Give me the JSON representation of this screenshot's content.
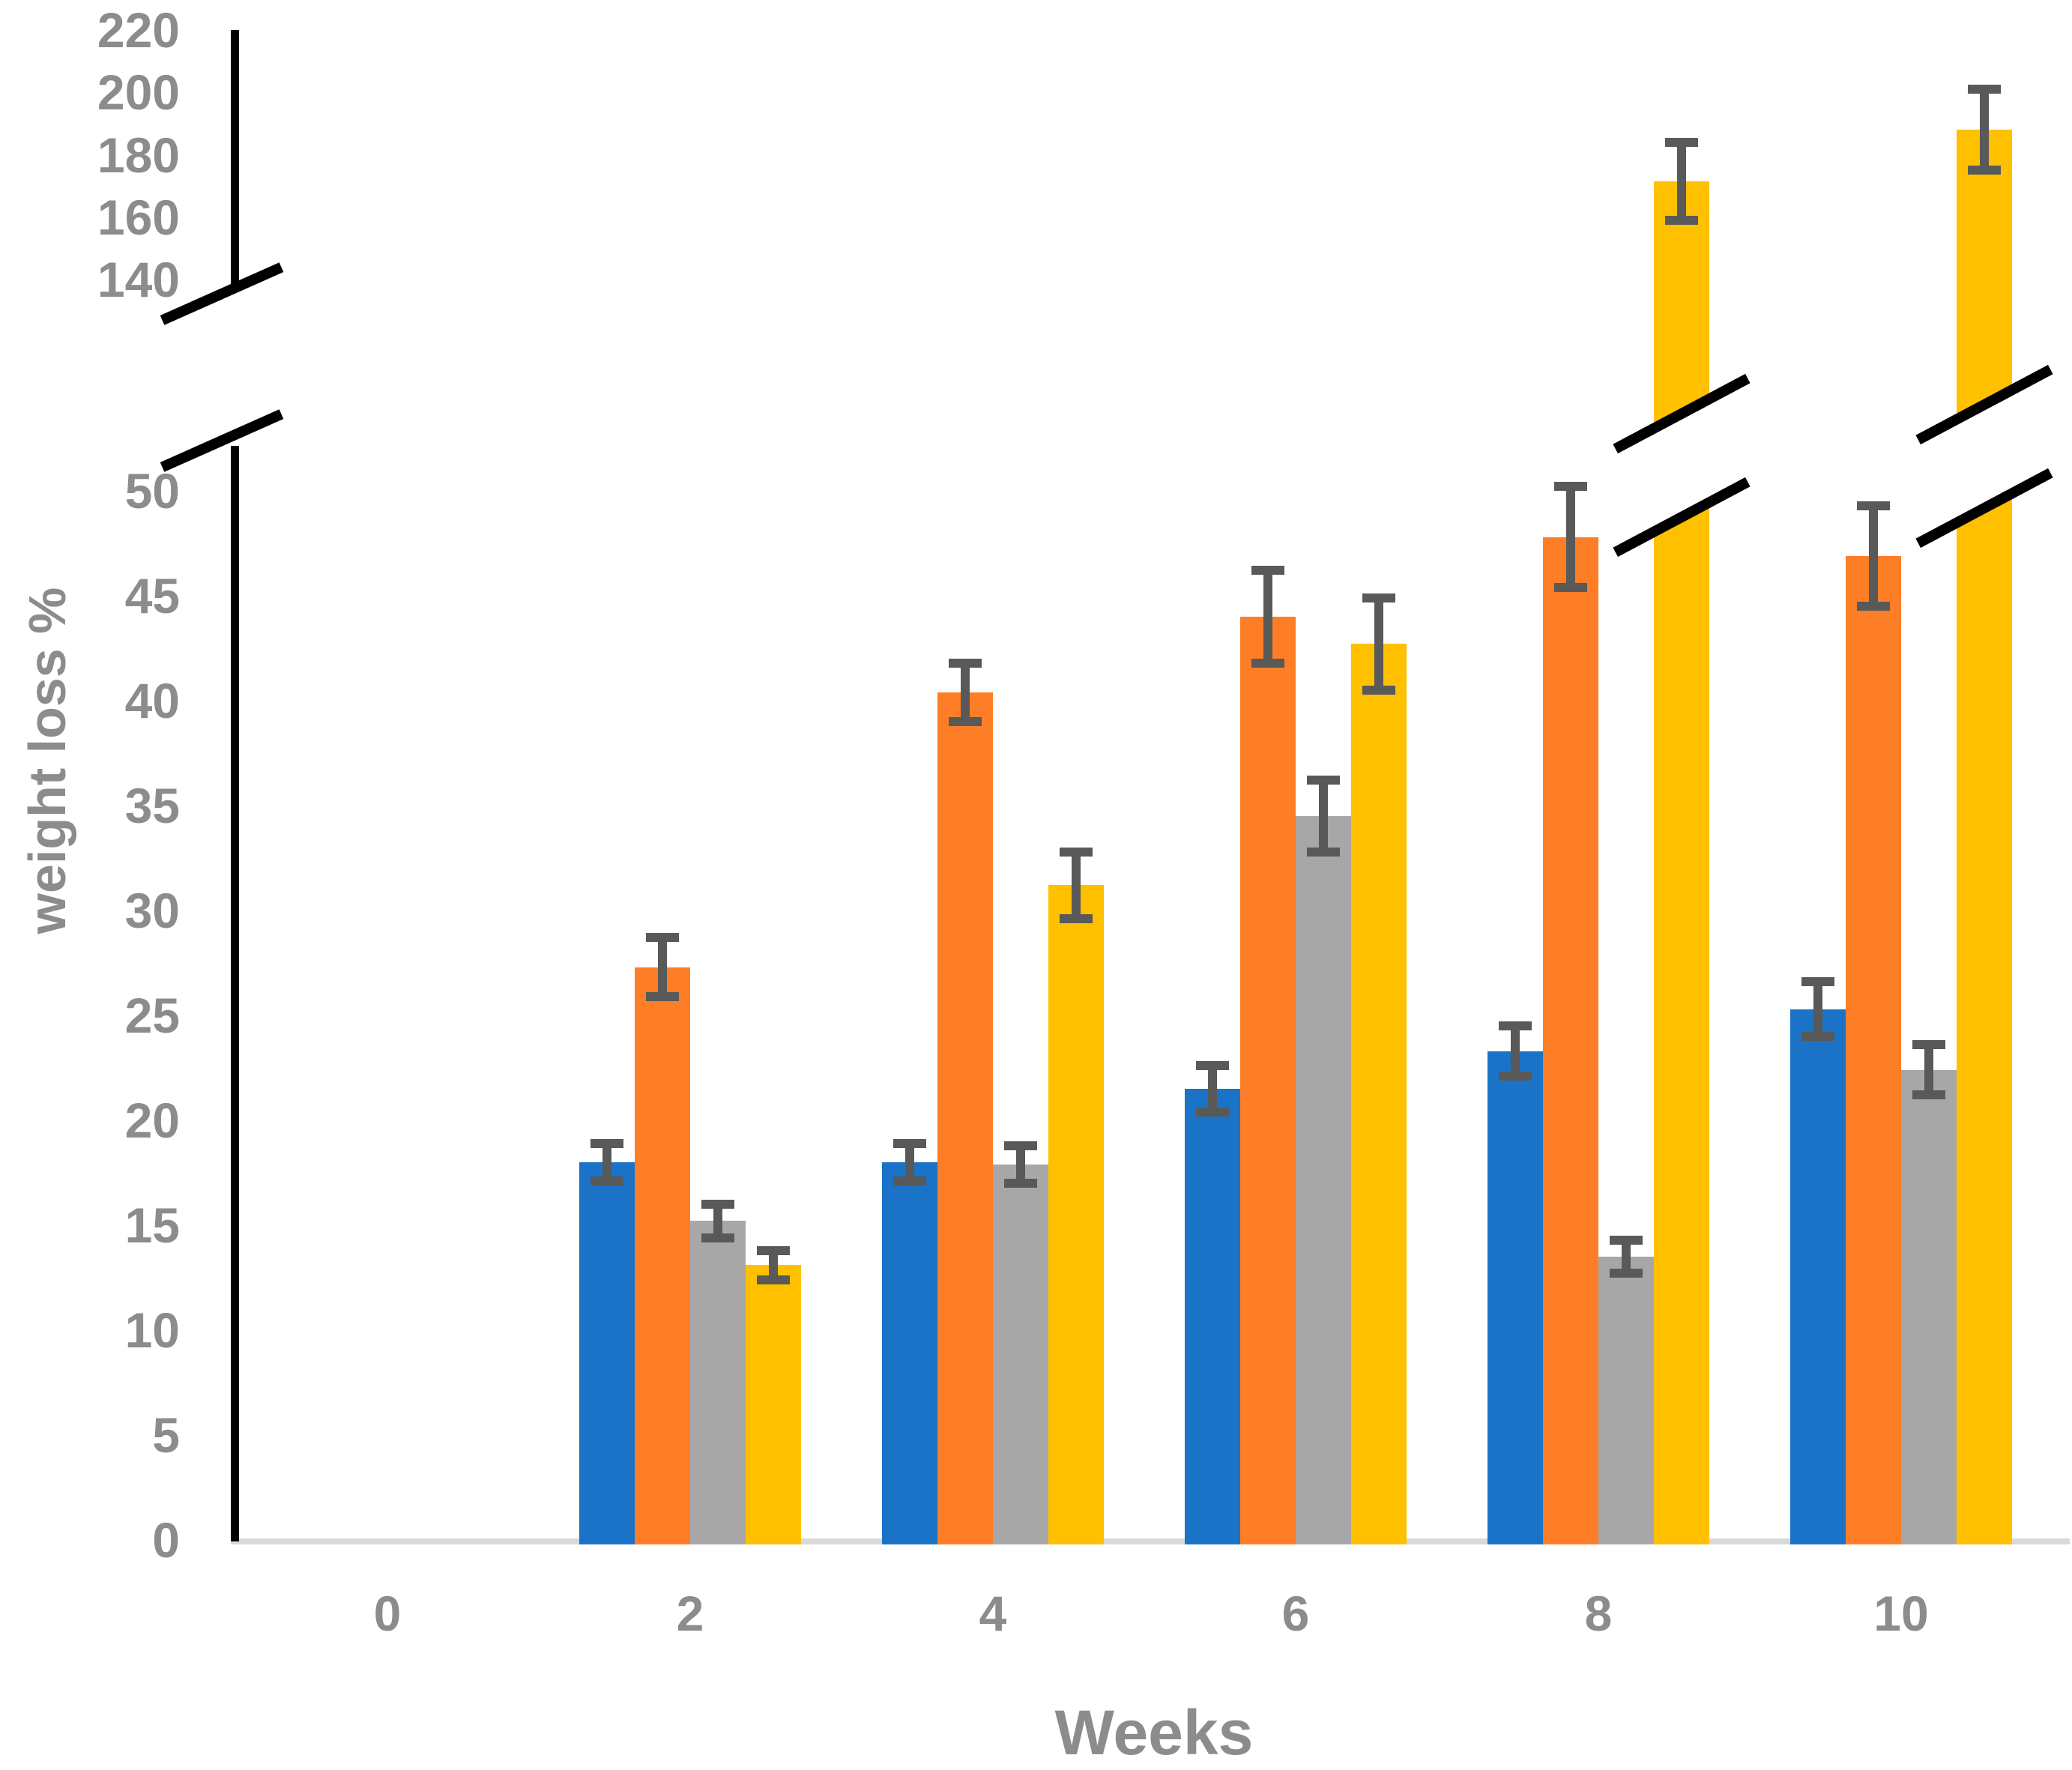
{
  "figure": {
    "y_axis_title": "weight loss %",
    "x_axis_title": "Weeks"
  },
  "chart_data": {
    "type": "bar",
    "title": "",
    "xlabel": "Weeks",
    "ylabel": "weight loss %",
    "legend": "none",
    "grid": false,
    "categories": [
      0,
      2,
      4,
      6,
      8,
      10
    ],
    "series": [
      {
        "name": "blue",
        "color": "#1A73C7",
        "values": [
          0,
          18.0,
          18.0,
          21.5,
          23.3,
          25.3
        ],
        "errors": [
          0,
          0.9,
          0.9,
          1.1,
          1.2,
          1.3
        ]
      },
      {
        "name": "orange",
        "color": "#FD7E27",
        "values": [
          0,
          27.3,
          40.4,
          44.0,
          47.8,
          46.9
        ],
        "errors": [
          0,
          1.4,
          1.4,
          2.2,
          2.4,
          2.4
        ]
      },
      {
        "name": "gray",
        "color": "#A7A7A7",
        "values": [
          0,
          15.2,
          17.9,
          34.5,
          13.5,
          22.4
        ],
        "errors": [
          0,
          0.8,
          0.9,
          1.7,
          0.8,
          1.2
        ]
      },
      {
        "name": "yellow",
        "color": "#FFC000",
        "values": [
          0,
          13.1,
          31.2,
          42.7,
          171.5,
          188.0
        ],
        "errors": [
          0,
          0.7,
          1.6,
          2.2,
          12.5,
          13.0
        ]
      }
    ],
    "y_axis": {
      "broken": true,
      "lower_range": [
        0,
        50
      ],
      "upper_range": [
        140,
        220
      ],
      "lower_ticks": [
        0,
        5,
        10,
        15,
        20,
        25,
        30,
        35,
        40,
        45,
        50
      ],
      "upper_ticks": [
        140,
        160,
        180,
        200,
        220
      ]
    }
  },
  "style": {
    "error_bar_color": "#595959",
    "axis_line_color": "#000000",
    "baseline_color": "#D9D9D9",
    "tick_text_color": "#8C8C8C"
  }
}
